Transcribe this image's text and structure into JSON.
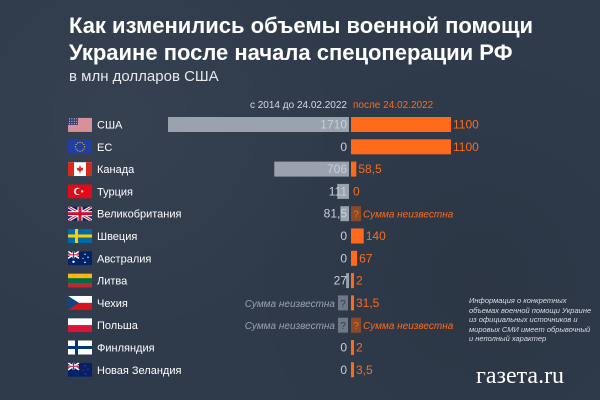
{
  "chart_data": {
    "type": "bar",
    "title": "Как изменились объемы военной помощи Украине после начала спецоперации РФ",
    "subtitle": "в млн долларов США",
    "legend": [
      "с 2014 до 24.02.2022",
      "после 24.02.2022"
    ],
    "categories": [
      "США",
      "ЕС",
      "Канада",
      "Турция",
      "Великобритания",
      "Швеция",
      "Австралия",
      "Литва",
      "Чехия",
      "Польша",
      "Финляндия",
      "Новая Зеландия"
    ],
    "flags": [
      "us-flag-icon",
      "eu-flag-icon",
      "canada-flag-icon",
      "turkey-flag-icon",
      "uk-flag-icon",
      "sweden-flag-icon",
      "australia-flag-icon",
      "lithuania-flag-icon",
      "czech-flag-icon",
      "poland-flag-icon",
      "finland-flag-icon",
      "new-zealand-flag-icon"
    ],
    "series": [
      {
        "name": "с 2014 до 24.02.2022",
        "color": "#9aa3ad",
        "values": [
          1710,
          0,
          706,
          111,
          81.5,
          0,
          0,
          27,
          null,
          null,
          0,
          0
        ],
        "labels": [
          "1710",
          "0",
          "706",
          "111",
          "81,5",
          "0",
          "0",
          "27",
          "Сумма неизвестна",
          "Сумма неизвестна",
          "0",
          "0"
        ]
      },
      {
        "name": "после 24.02.2022",
        "color": "#ff6a1a",
        "values": [
          1100,
          1100,
          58.5,
          0,
          null,
          140,
          67,
          2,
          31.5,
          null,
          2,
          3.5
        ],
        "labels": [
          "1100",
          "1100",
          "58,5",
          "0",
          "Сумма неизвестна",
          "140",
          "67",
          "2",
          "31,5",
          "Сумма неизвестна",
          "2",
          "3,5"
        ]
      }
    ],
    "unknown_marker": "?",
    "note": "Информация о конкретных объемах военной помощи Украине из официальных источников и мировых СМИ имеет обрывочный и неполный характер",
    "brand": "газета.ru"
  }
}
